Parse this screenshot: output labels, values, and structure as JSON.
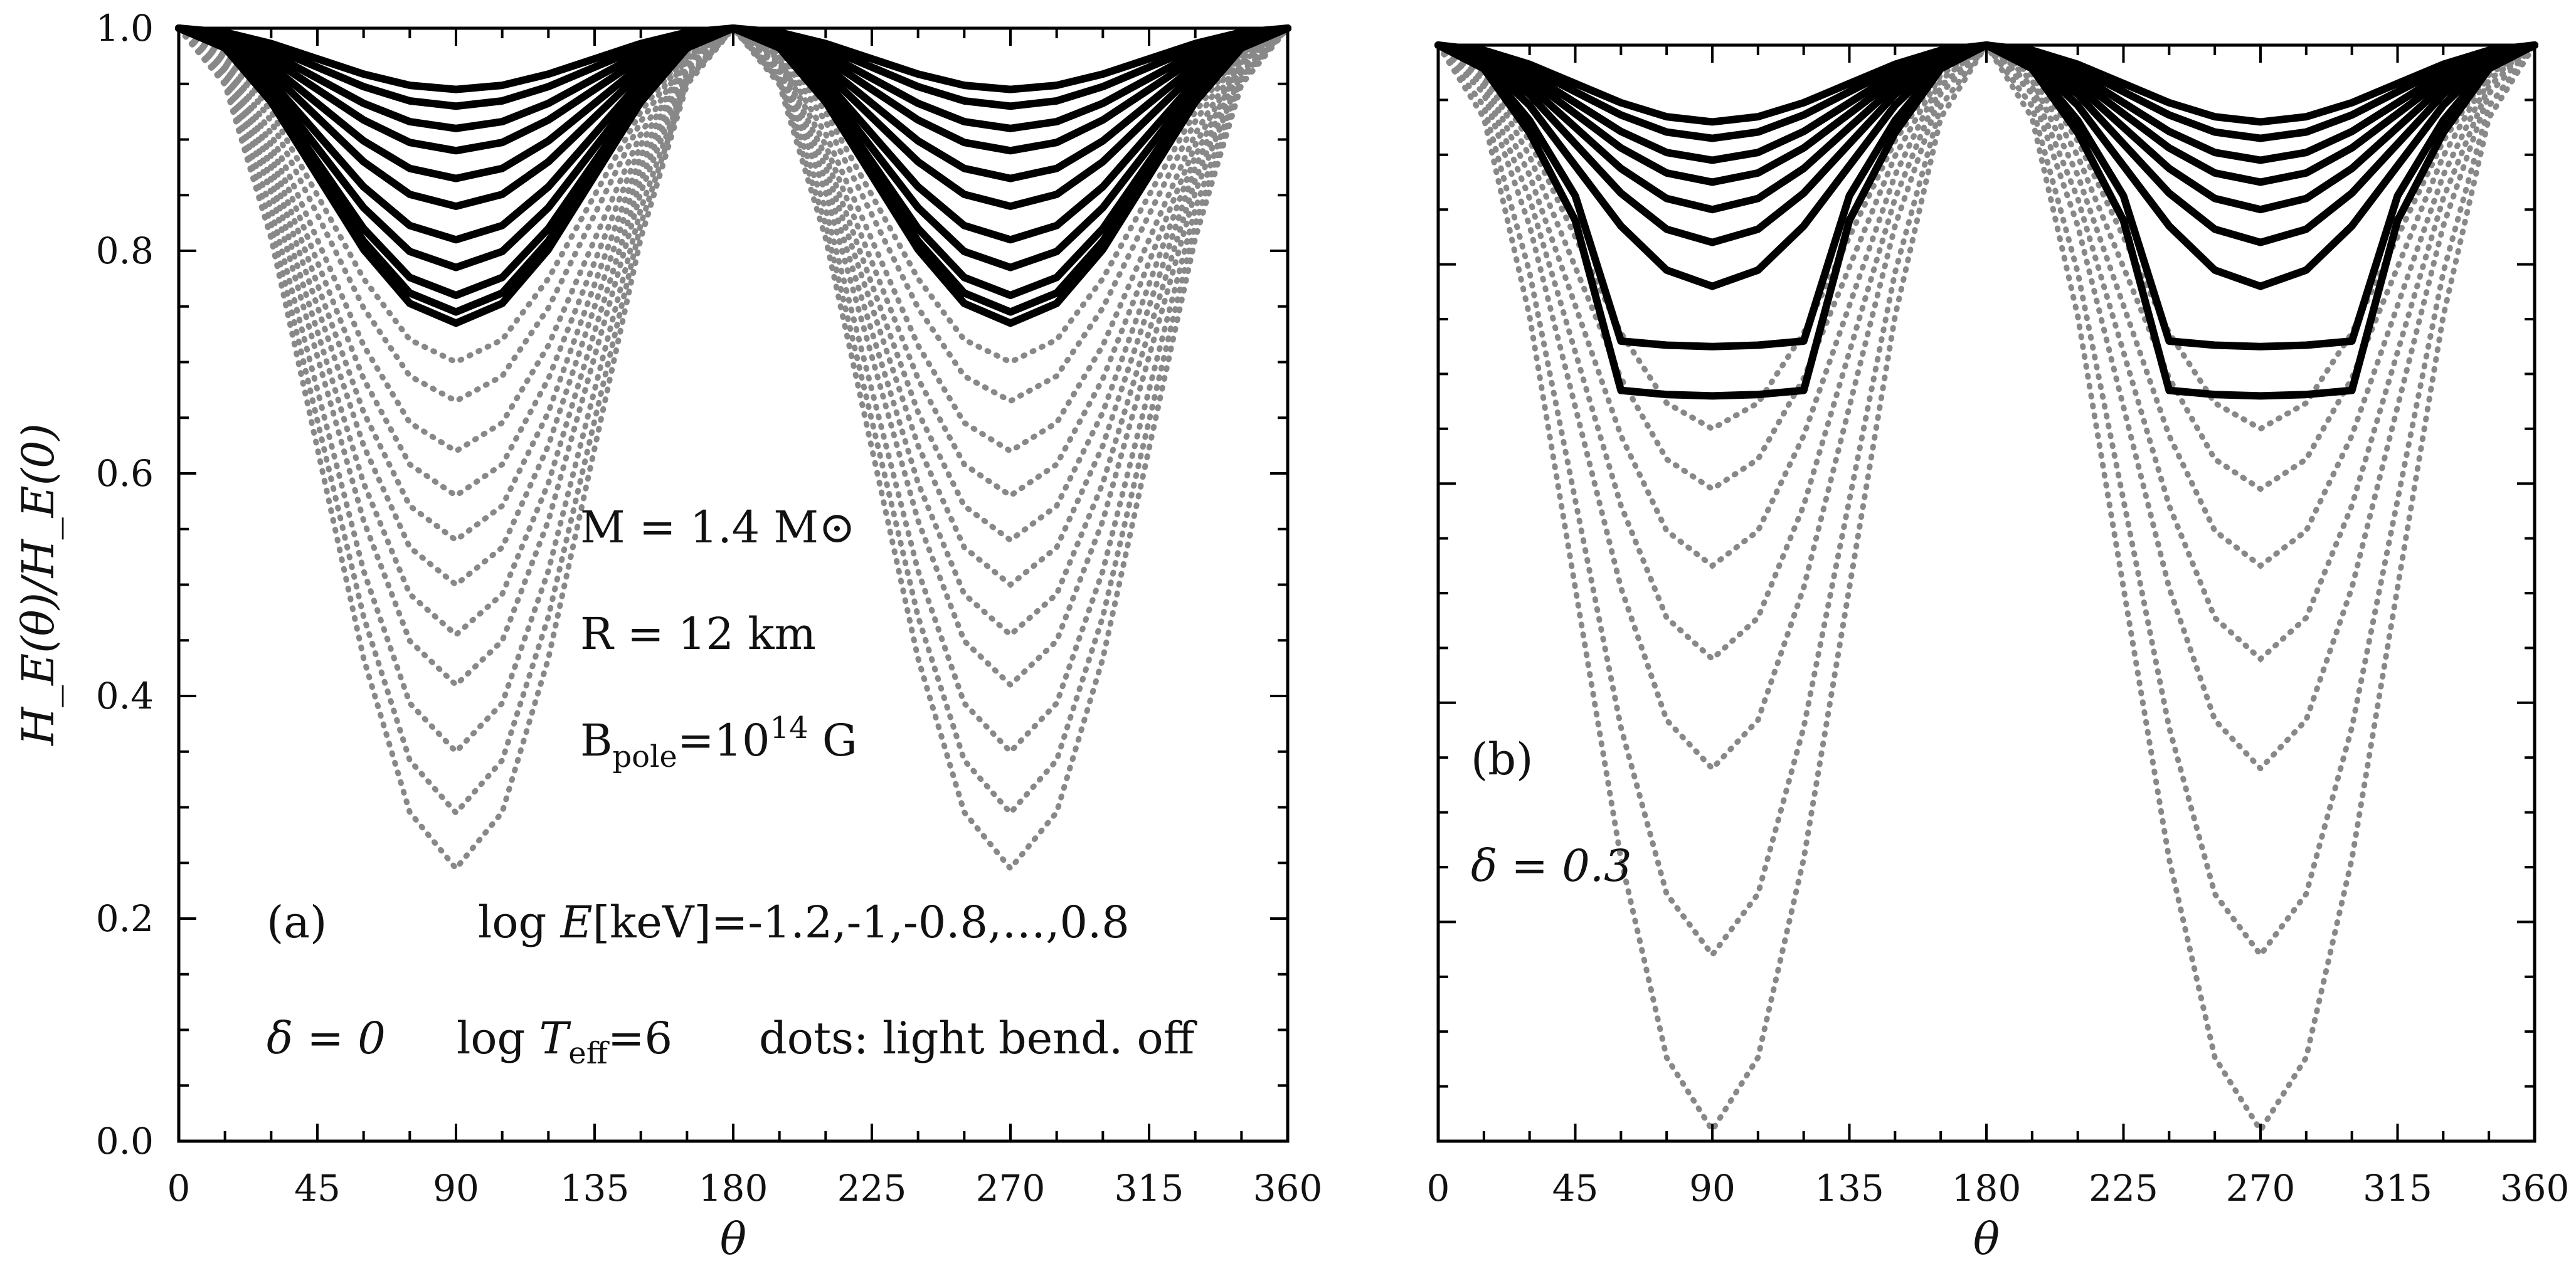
{
  "chart_data": [
    {
      "type": "line",
      "panel": "a",
      "x": [
        0,
        15,
        30,
        45,
        60,
        75,
        90,
        105,
        120,
        135,
        150,
        165,
        180,
        195,
        210,
        225,
        240,
        255,
        270,
        285,
        300,
        315,
        330,
        345,
        360
      ],
      "xlabel": "θ",
      "ylabel": "H_E(θ)/H_E(0)",
      "xlim": [
        0,
        360
      ],
      "ylim": [
        0,
        1
      ],
      "x_ticks": [
        "0",
        "45",
        "90",
        "135",
        "180",
        "225",
        "270",
        "315",
        "360"
      ],
      "y_ticks": [
        "0.0",
        "0.2",
        "0.4",
        "0.6",
        "0.8",
        "1.0"
      ],
      "energies_log_keV": [
        -1.2,
        -1.0,
        -0.8,
        -0.6,
        -0.4,
        -0.2,
        0.0,
        0.2,
        0.4,
        0.6,
        0.8
      ],
      "series_solid": [
        {
          "name": "logE=-1.2",
          "min": 0.945
        },
        {
          "name": "logE=-1.0",
          "min": 0.93
        },
        {
          "name": "logE=-0.8",
          "min": 0.91
        },
        {
          "name": "logE=-0.6",
          "min": 0.89
        },
        {
          "name": "logE=-0.4",
          "min": 0.865
        },
        {
          "name": "logE=-0.2",
          "min": 0.84
        },
        {
          "name": "logE=0.0",
          "min": 0.81
        },
        {
          "name": "logE=0.2",
          "min": 0.785
        },
        {
          "name": "logE=0.4",
          "min": 0.76
        },
        {
          "name": "logE=0.6",
          "min": 0.745
        },
        {
          "name": "logE=0.8",
          "min": 0.735
        }
      ],
      "series_dotted": [
        {
          "name": "logE=-1.2",
          "min": 0.7
        },
        {
          "name": "logE=-1.0",
          "min": 0.665
        },
        {
          "name": "logE=-0.8",
          "min": 0.62
        },
        {
          "name": "logE=-0.6",
          "min": 0.58
        },
        {
          "name": "logE=-0.4",
          "min": 0.54
        },
        {
          "name": "logE=-0.2",
          "min": 0.5
        },
        {
          "name": "logE=0.0",
          "min": 0.455
        },
        {
          "name": "logE=0.2",
          "min": 0.41
        },
        {
          "name": "logE=0.4",
          "min": 0.35
        },
        {
          "name": "logE=0.6",
          "min": 0.295
        },
        {
          "name": "logE=0.8",
          "min": 0.245
        }
      ],
      "annotations": {
        "mass": "M = 1.4 M⊙",
        "radius": "R = 12 km",
        "field_base": "B",
        "field_sub": "pole",
        "field_mid": "=10",
        "field_sup": "14",
        "field_unit": " G",
        "panel_label": "(a)",
        "energy_prefix": "log ",
        "energy_var": "E",
        "energy_values": "[keV]=-1.2,-1,-0.8,…,0.8",
        "delta": "δ = 0",
        "teff_prefix": "log ",
        "teff_var": "T",
        "teff_sub": "eff",
        "teff_value": "=6",
        "dots_note": "dots: light bend. off"
      }
    },
    {
      "type": "line",
      "panel": "b",
      "x": [
        0,
        15,
        30,
        45,
        60,
        75,
        90,
        105,
        120,
        135,
        150,
        165,
        180,
        195,
        210,
        225,
        240,
        255,
        270,
        285,
        300,
        315,
        330,
        345,
        360
      ],
      "xlabel": "θ",
      "xlim": [
        0,
        360
      ],
      "ylim": [
        0,
        1
      ],
      "x_ticks": [
        "0",
        "45",
        "90",
        "135",
        "180",
        "225",
        "270",
        "315",
        "360"
      ],
      "series_solid": [
        {
          "name": "logE=-1.2",
          "min": 0.93
        },
        {
          "name": "logE=-1.0",
          "min": 0.915
        },
        {
          "name": "logE=-0.8",
          "min": 0.895
        },
        {
          "name": "logE=-0.6",
          "min": 0.875
        },
        {
          "name": "logE=-0.4",
          "min": 0.85
        },
        {
          "name": "logE=-0.2",
          "min": 0.82
        },
        {
          "name": "logE=0.0",
          "min": 0.78
        },
        {
          "name": "logE=0.2",
          "min": 0.725,
          "flat_from": 60,
          "flat_to": 120
        },
        {
          "name": "logE=0.4",
          "min": 0.68,
          "flat_from": 60,
          "flat_to": 120
        }
      ],
      "series_dotted": [
        {
          "name": "logE=-1.2",
          "min": 0.65
        },
        {
          "name": "logE=-1.0",
          "min": 0.595
        },
        {
          "name": "logE=-0.8",
          "min": 0.525
        },
        {
          "name": "logE=-0.6",
          "min": 0.44
        },
        {
          "name": "logE=-0.4",
          "min": 0.34
        },
        {
          "name": "logE=-0.2",
          "min": 0.17
        },
        {
          "name": "logE=0.0",
          "min": 0.01
        }
      ],
      "annotations": {
        "panel_label": "(b)",
        "delta": "δ = 0.3"
      }
    }
  ]
}
